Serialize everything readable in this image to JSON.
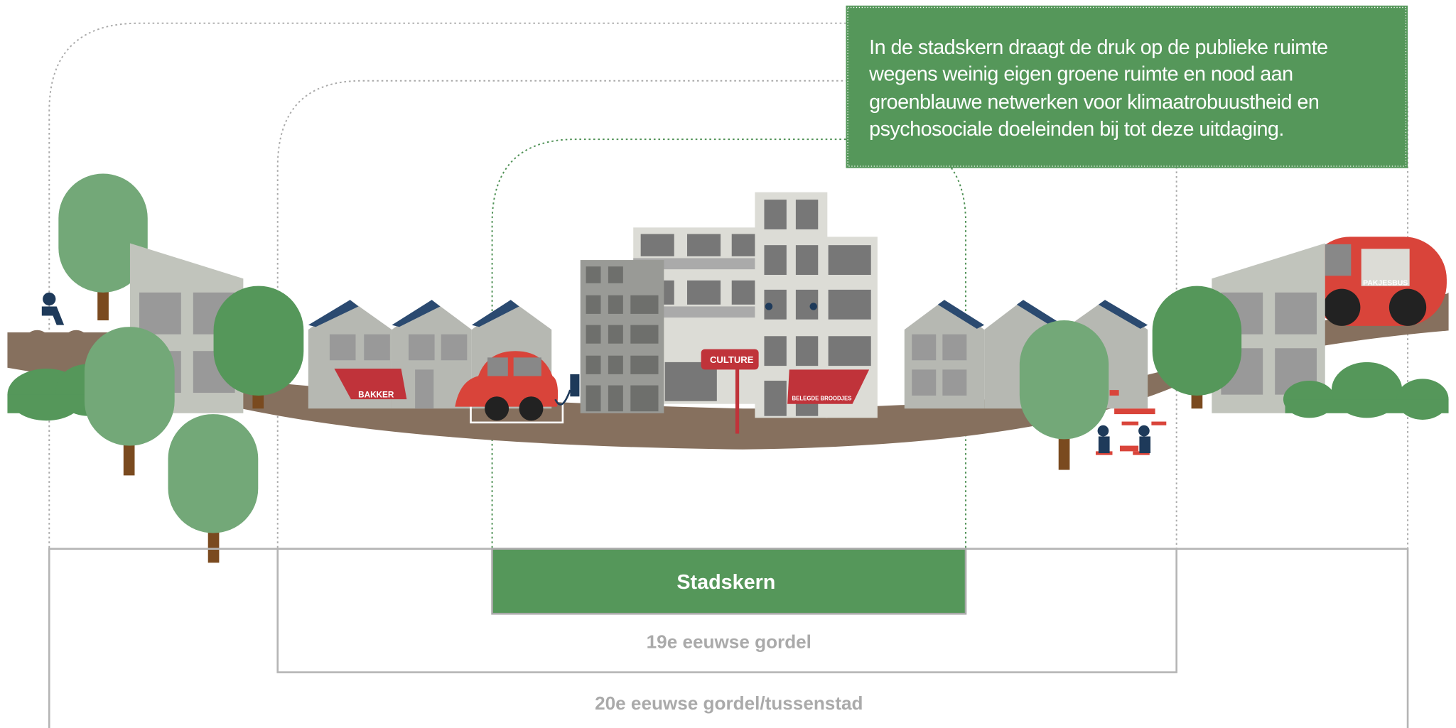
{
  "callout": {
    "lines": [
      "In de stadskern draagt de druk op de publieke ruimte",
      "wegens weinig eigen groene ruimte en nood aan",
      "groenblauwe netwerken voor klimaatrobuustheid en",
      "psychosociale doeleinden bij tot deze uitdaging."
    ]
  },
  "zones": {
    "inner": "Stadskern",
    "middle": "19e eeuwse gordel",
    "outer": "20e eeuwse gordel/tussenstad"
  },
  "signs": {
    "bakery": "BAKKER",
    "culture": "CULTURE",
    "sandwiches": "BELEGDE BROODJES",
    "van": "PAKJESBUS"
  }
}
